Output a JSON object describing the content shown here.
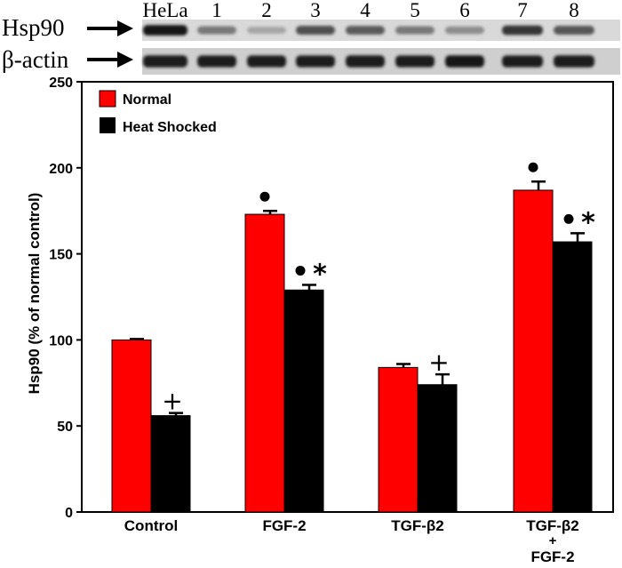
{
  "blot": {
    "row_labels": [
      "Hsp90",
      "β-actin"
    ],
    "lane_labels": [
      "HeLa",
      "1",
      "2",
      "3",
      "4",
      "5",
      "6",
      "7",
      "8"
    ],
    "hsp90_intensity": [
      0.95,
      0.45,
      0.22,
      0.65,
      0.6,
      0.45,
      0.35,
      0.78,
      0.62
    ],
    "actin_intensity": [
      0.92,
      0.9,
      0.9,
      0.9,
      0.92,
      0.9,
      0.94,
      0.9,
      0.92
    ]
  },
  "chart_data": {
    "type": "bar",
    "title": "",
    "xlabel": "",
    "ylabel": "Hsp90 (% of normal control)",
    "ylim": [
      0,
      250
    ],
    "yticks": [
      0,
      50,
      100,
      150,
      200,
      250
    ],
    "categories": [
      {
        "line1": "Control",
        "line2": "",
        "line3": ""
      },
      {
        "line1": "FGF-2",
        "line2": "",
        "line3": ""
      },
      {
        "line1": "TGF-β2",
        "line2": "",
        "line3": ""
      },
      {
        "line1": "TGF-β2",
        "line2": "+",
        "line3": "FGF-2"
      }
    ],
    "series": [
      {
        "name": "Normal",
        "color": "#ff0000",
        "values": [
          100,
          173,
          84,
          187
        ],
        "errors": [
          0.5,
          2,
          2,
          5
        ],
        "markers": [
          "",
          "•",
          "",
          "•"
        ]
      },
      {
        "name": "Heat Shocked",
        "color": "#000000",
        "values": [
          56,
          129,
          74,
          157
        ],
        "errors": [
          1.5,
          3,
          6,
          5
        ],
        "markers": [
          "+",
          "• *",
          "+",
          "• *"
        ]
      }
    ],
    "legend_position": "top-left",
    "grid": false
  }
}
